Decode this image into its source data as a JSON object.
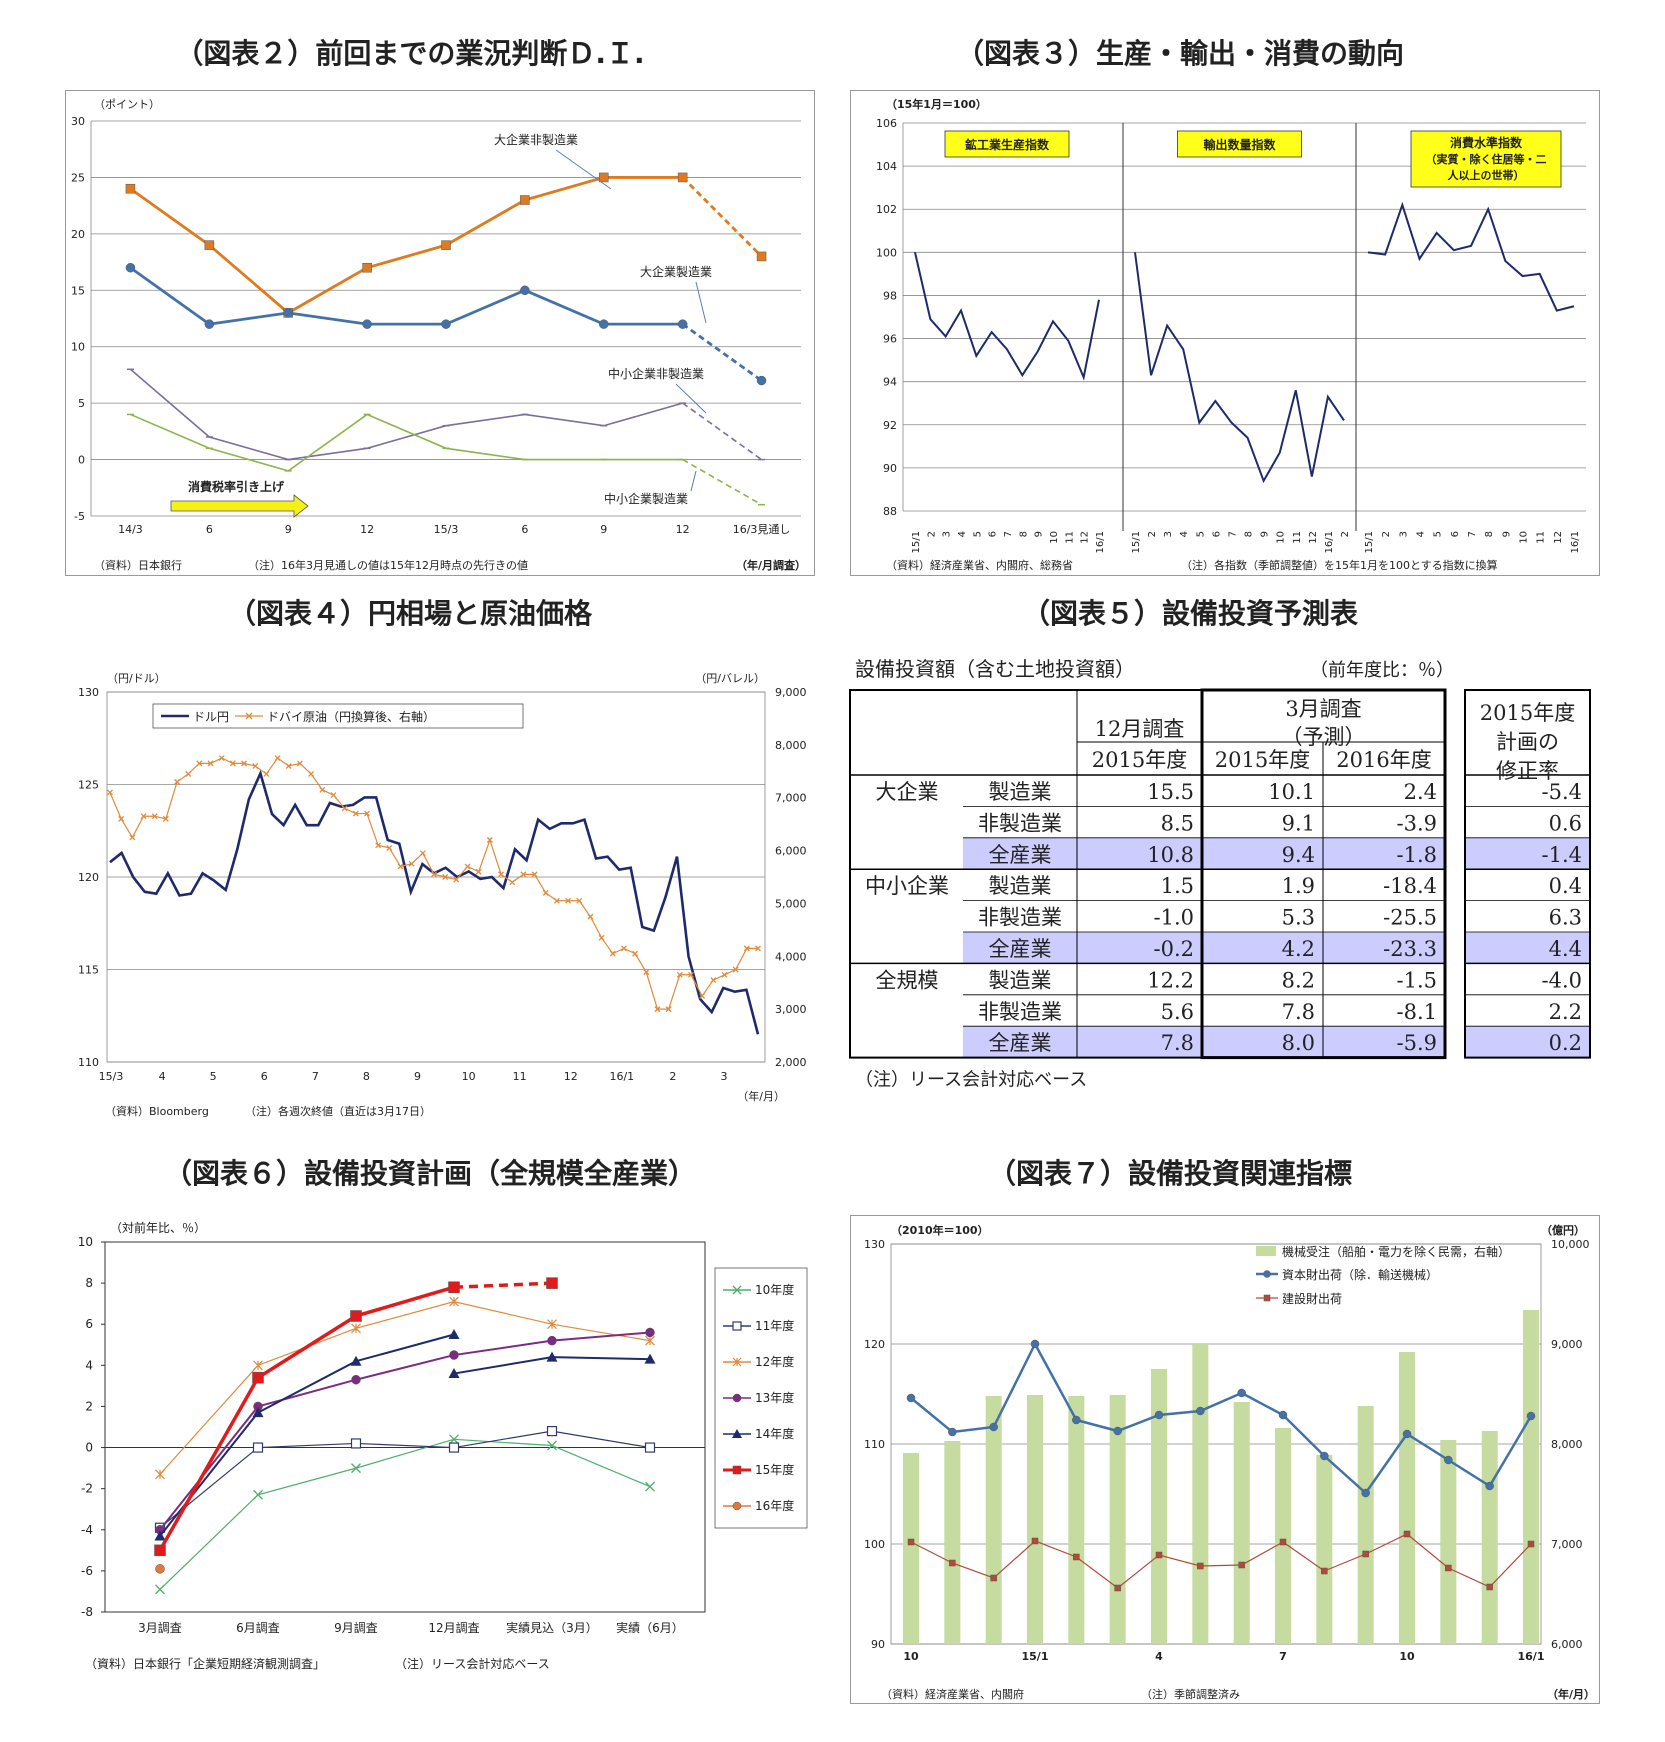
{
  "titles": {
    "fig2": "（図表２）前回までの業況判断Ｄ.Ｉ.",
    "fig3": "（図表３）生産・輸出・消費の動向",
    "fig4": "（図表４）円相場と原油価格",
    "fig5": "（図表５）設備投資予測表",
    "fig6": "（図表６）設備投資計画（全規模全産業）",
    "fig7": "（図表７）設備投資関連指標"
  },
  "chart_data": [
    {
      "id": "fig2",
      "type": "line",
      "unit_label": "（ポイント）",
      "ylim": [
        -5,
        30
      ],
      "y_ticks": [
        -5,
        0,
        5,
        10,
        15,
        20,
        25,
        30
      ],
      "categories": [
        "14/3",
        "6",
        "9",
        "12",
        "15/3",
        "6",
        "9",
        "12",
        "16/3見通し"
      ],
      "x_unit": "（年/月調査）",
      "series": [
        {
          "name": "大企業非製造業",
          "color": "#E07A1F",
          "marker": "square",
          "values": [
            24,
            19,
            13,
            17,
            19,
            23,
            25,
            25,
            18
          ]
        },
        {
          "name": "大企業製造業",
          "color": "#4472A8",
          "marker": "circle",
          "values": [
            17,
            12,
            13,
            12,
            12,
            15,
            12,
            12,
            7
          ]
        },
        {
          "name": "中小企業非製造業",
          "color": "#7B6E9A",
          "marker": "dash",
          "values": [
            8,
            2,
            0,
            1,
            3,
            4,
            3,
            5,
            0
          ]
        },
        {
          "name": "中小企業製造業",
          "color": "#8DB44A",
          "marker": "dash",
          "values": [
            4,
            1,
            -1,
            4,
            1,
            0,
            0,
            0,
            -4
          ]
        }
      ],
      "annotation": "消費税率引き上げ",
      "source": "（資料）日本銀行",
      "note": "（注）16年3月見通しの値は15年12月時点の先行きの値"
    },
    {
      "id": "fig3",
      "type": "line",
      "unit_label": "（15年1月＝100）",
      "ylim": [
        88,
        106
      ],
      "y_ticks": [
        88,
        90,
        92,
        94,
        96,
        98,
        100,
        102,
        104,
        106
      ],
      "panels": [
        {
          "name": "鉱工業生産指数",
          "x": [
            "15/1",
            "2",
            "3",
            "4",
            "5",
            "6",
            "7",
            "8",
            "9",
            "10",
            "11",
            "12",
            "16/1"
          ],
          "values": [
            100.0,
            96.9,
            96.1,
            97.3,
            95.2,
            96.3,
            95.5,
            94.3,
            95.4,
            96.8,
            95.9,
            94.2,
            97.8
          ]
        },
        {
          "name": "輸出数量指数",
          "x": [
            "15/1",
            "2",
            "3",
            "4",
            "5",
            "6",
            "7",
            "8",
            "9",
            "10",
            "11",
            "12",
            "16/1",
            "2"
          ],
          "values": [
            100.0,
            94.3,
            96.6,
            95.5,
            92.1,
            93.1,
            92.1,
            91.4,
            89.4,
            90.7,
            93.6,
            89.6,
            93.3,
            92.2
          ]
        },
        {
          "name": "消費水準指数\n（実質・除く住居等・二人以上の世帯）",
          "x": [
            "15/1",
            "2",
            "3",
            "4",
            "5",
            "6",
            "7",
            "8",
            "9",
            "10",
            "11",
            "12",
            "16/1"
          ],
          "values": [
            100.0,
            99.9,
            102.2,
            99.7,
            100.9,
            100.1,
            100.3,
            102.0,
            99.6,
            98.9,
            99.0,
            97.3,
            97.5
          ]
        }
      ],
      "source": "（資料）経済産業省、内閣府、総務省",
      "note": "（注）各指数（季節調整値）を15年1月を100とする指数に換算"
    },
    {
      "id": "fig4",
      "type": "line",
      "y_left_label": "（円/ドル）",
      "y_right_label": "（円/バレル）",
      "ylim_left": [
        110,
        130
      ],
      "ylim_right": [
        2000,
        9000
      ],
      "y_left_ticks": [
        110,
        115,
        120,
        125,
        130
      ],
      "y_right_ticks": [
        "2,000",
        "3,000",
        "4,000",
        "5,000",
        "6,000",
        "7,000",
        "8,000",
        "9,000"
      ],
      "x_ticks": [
        "15/3",
        "4",
        "5",
        "6",
        "7",
        "8",
        "9",
        "10",
        "11",
        "12",
        "16/1",
        "2",
        "3"
      ],
      "x_unit": "（年/月）",
      "series": [
        {
          "name": "ドル円",
          "axis": "left",
          "color": "#1F2A6B",
          "values": [
            120.8,
            121.3,
            120.0,
            119.2,
            119.1,
            120.2,
            119.0,
            119.1,
            120.2,
            119.8,
            119.3,
            121.5,
            124.2,
            125.6,
            123.4,
            122.8,
            123.9,
            122.8,
            122.8,
            124.0,
            123.8,
            123.9,
            124.3,
            124.3,
            122.0,
            121.8,
            119.2,
            120.7,
            120.2,
            120.5,
            120.0,
            120.3,
            119.9,
            120.0,
            119.4,
            121.5,
            120.9,
            123.1,
            122.6,
            122.9,
            122.9,
            123.1,
            121.0,
            121.1,
            120.4,
            120.5,
            117.3,
            117.1,
            118.9,
            121.1,
            115.7,
            113.4,
            112.7,
            114.0,
            113.8,
            113.9,
            111.5
          ]
        },
        {
          "name": "ドバイ原油（円換算後、右軸）",
          "axis": "right",
          "color": "#E08A3C",
          "values": [
            7100,
            6600,
            6250,
            6650,
            6650,
            6600,
            7300,
            7450,
            7650,
            7650,
            7750,
            7650,
            7650,
            7600,
            7450,
            7750,
            7600,
            7650,
            7450,
            7150,
            7050,
            6800,
            6700,
            6700,
            6100,
            6050,
            5700,
            5750,
            5950,
            5550,
            5500,
            5450,
            5700,
            5600,
            6200,
            5550,
            5400,
            5550,
            5550,
            5200,
            5050,
            5050,
            5050,
            4750,
            4350,
            4050,
            4150,
            4050,
            3700,
            3000,
            3000,
            3650,
            3650,
            3250,
            3550,
            3650,
            3750,
            4150,
            4150
          ]
        }
      ],
      "source": "（資料）Bloomberg",
      "note": "（注）各週次終値（直近は3月17日）"
    },
    {
      "id": "fig5",
      "type": "table",
      "caption": "設備投資額（含む土地投資額）",
      "unit": "（前年度比：％）",
      "headers": {
        "dec": "12月調査",
        "mar1": "3月調査",
        "mar2": "（予測）",
        "rev1": "2015年度",
        "rev2": "計画の",
        "rev3": "修正率",
        "fy15": "2015年度",
        "fy16": "2016年度"
      },
      "groups": [
        "大企業",
        "中小企業",
        "全規模"
      ],
      "rows": [
        {
          "group": "大企業",
          "sector": "製造業",
          "dec15": "15.5",
          "mar15": "10.1",
          "mar16": "2.4",
          "rev": "-5.4",
          "hl": false
        },
        {
          "group": "大企業",
          "sector": "非製造業",
          "dec15": "8.5",
          "mar15": "9.1",
          "mar16": "-3.9",
          "rev": "0.6",
          "hl": false
        },
        {
          "group": "大企業",
          "sector": "全産業",
          "dec15": "10.8",
          "mar15": "9.4",
          "mar16": "-1.8",
          "rev": "-1.4",
          "hl": true
        },
        {
          "group": "中小企業",
          "sector": "製造業",
          "dec15": "1.5",
          "mar15": "1.9",
          "mar16": "-18.4",
          "rev": "0.4",
          "hl": false
        },
        {
          "group": "中小企業",
          "sector": "非製造業",
          "dec15": "-1.0",
          "mar15": "5.3",
          "mar16": "-25.5",
          "rev": "6.3",
          "hl": false
        },
        {
          "group": "中小企業",
          "sector": "全産業",
          "dec15": "-0.2",
          "mar15": "4.2",
          "mar16": "-23.3",
          "rev": "4.4",
          "hl": true
        },
        {
          "group": "全規模",
          "sector": "製造業",
          "dec15": "12.2",
          "mar15": "8.2",
          "mar16": "-1.5",
          "rev": "-4.0",
          "hl": false
        },
        {
          "group": "全規模",
          "sector": "非製造業",
          "dec15": "5.6",
          "mar15": "7.8",
          "mar16": "-8.1",
          "rev": "2.2",
          "hl": false
        },
        {
          "group": "全規模",
          "sector": "全産業",
          "dec15": "7.8",
          "mar15": "8.0",
          "mar16": "-5.9",
          "rev": "0.2",
          "hl": true
        }
      ],
      "note": "（注）リース会計対応ベース"
    },
    {
      "id": "fig6",
      "type": "line",
      "unit_label": "（対前年比、％）",
      "ylim": [
        -8,
        10
      ],
      "y_ticks": [
        -8,
        -6,
        -4,
        -2,
        0,
        2,
        4,
        6,
        8,
        10
      ],
      "categories": [
        "3月調査",
        "6月調査",
        "9月調査",
        "12月調査",
        "実績見込（3月）",
        "実績（6月）"
      ],
      "series": [
        {
          "name": "10年度",
          "color": "#4CAF6A",
          "marker": "x",
          "values": [
            -6.9,
            -2.3,
            -1.0,
            0.4,
            0.1,
            -1.9
          ]
        },
        {
          "name": "11年度",
          "color": "#333A6B",
          "marker": "open-square",
          "values": [
            -3.9,
            0.0,
            0.2,
            0.0,
            0.8,
            0.0
          ]
        },
        {
          "name": "12年度",
          "color": "#E08A3C",
          "marker": "star",
          "values": [
            -1.3,
            4.0,
            5.8,
            7.1,
            6.0,
            5.2
          ]
        },
        {
          "name": "13年度",
          "color": "#7B2C82",
          "marker": "circle",
          "values": [
            -4.0,
            2.0,
            3.3,
            4.5,
            5.2,
            5.6
          ]
        },
        {
          "name": "14年度",
          "color": "#1F2A6B",
          "marker": "triangle",
          "values": [
            -4.3,
            1.7,
            4.2,
            5.5,
            null,
            null
          ],
          "values_b": [
            null,
            null,
            null,
            3.6,
            4.4,
            4.3
          ]
        },
        {
          "name": "15年度",
          "color": "#E01B1B",
          "marker": "square",
          "values": [
            -5.0,
            3.4,
            6.4,
            7.8,
            8.0,
            null
          ]
        },
        {
          "name": "16年度",
          "color": "#E07A3C",
          "marker": "circle",
          "values": [
            -5.9,
            null,
            null,
            null,
            null,
            null
          ]
        }
      ],
      "source": "（資料）日本銀行「企業短期経済観測調査」",
      "note": "（注）リース会計対応ベース"
    },
    {
      "id": "fig7",
      "type": "bar",
      "y_left_label": "（2010年＝100）",
      "y_right_label": "（億円）",
      "ylim_left": [
        90,
        130
      ],
      "ylim_right": [
        6000,
        10000
      ],
      "y_left_ticks": [
        90,
        100,
        110,
        120,
        130
      ],
      "y_right_ticks": [
        "6,000",
        "7,000",
        "8,000",
        "9,000",
        "10,000"
      ],
      "x_ticks": [
        {
          "label": "10",
          "i": 0
        },
        {
          "label": "15/1",
          "i": 3
        },
        {
          "label": "4",
          "i": 6
        },
        {
          "label": "7",
          "i": 9
        },
        {
          "label": "10",
          "i": 12
        },
        {
          "label": "16/1",
          "i": 15
        }
      ],
      "x_unit": "（年/月）",
      "series": [
        {
          "name": "機械受注（船舶・電力を除く民需，右軸）",
          "axis": "right",
          "color": "#C5DBA0",
          "values": [
            7910,
            8030,
            8480,
            8490,
            8480,
            8490,
            8750,
            9000,
            8420,
            8160,
            7890,
            8380,
            8920,
            8040,
            8130,
            9340
          ]
        },
        {
          "name": "資本財出荷（除．輸送機械）",
          "axis": "left",
          "color": "#4472A8",
          "values": [
            114.6,
            111.2,
            111.7,
            120.0,
            112.4,
            111.3,
            112.9,
            113.3,
            115.1,
            112.9,
            108.8,
            105.1,
            111.0,
            108.4,
            105.8,
            112.8
          ]
        },
        {
          "name": "建設財出荷",
          "axis": "left",
          "color": "#B24A3A",
          "values": [
            100.2,
            98.1,
            96.6,
            100.3,
            98.7,
            95.6,
            98.9,
            97.8,
            97.9,
            100.2,
            97.3,
            99.0,
            101.0,
            97.6,
            95.7,
            100.0
          ]
        }
      ],
      "source": "（資料）経済産業省、内閣府",
      "note": "（注）季節調整済み"
    }
  ]
}
